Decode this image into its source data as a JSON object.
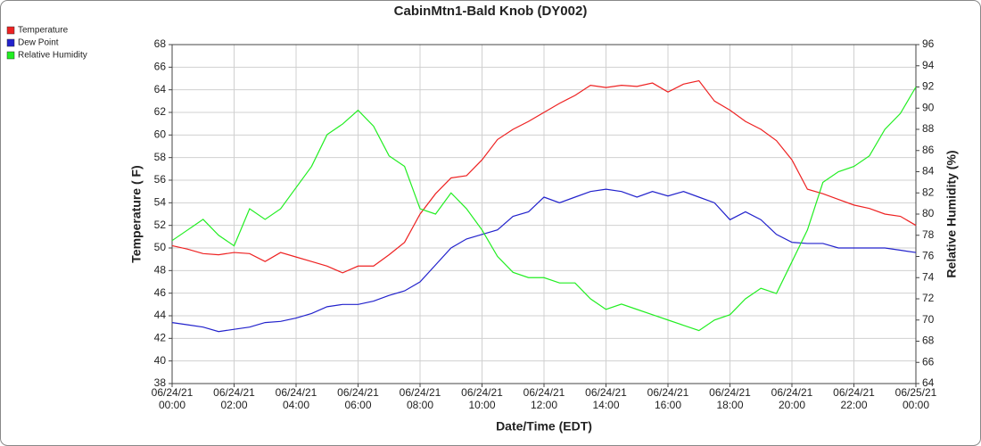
{
  "chart_data": {
    "type": "line",
    "title": "CabinMtn1-Bald Knob (DY002)",
    "xlabel": "Date/Time (EDT)",
    "ylabel": "Temperature ( F)",
    "y2label": "Relative Humidity (%)",
    "grid": true,
    "legend": "top-left",
    "x": [
      "2021-06-24T00:00",
      "2021-06-24T00:30",
      "2021-06-24T01:00",
      "2021-06-24T01:30",
      "2021-06-24T02:00",
      "2021-06-24T02:30",
      "2021-06-24T03:00",
      "2021-06-24T03:30",
      "2021-06-24T04:00",
      "2021-06-24T04:30",
      "2021-06-24T05:00",
      "2021-06-24T05:30",
      "2021-06-24T06:00",
      "2021-06-24T06:30",
      "2021-06-24T07:00",
      "2021-06-24T07:30",
      "2021-06-24T08:00",
      "2021-06-24T08:30",
      "2021-06-24T09:00",
      "2021-06-24T09:30",
      "2021-06-24T10:00",
      "2021-06-24T10:30",
      "2021-06-24T11:00",
      "2021-06-24T11:30",
      "2021-06-24T12:00",
      "2021-06-24T12:30",
      "2021-06-24T13:00",
      "2021-06-24T13:30",
      "2021-06-24T14:00",
      "2021-06-24T14:30",
      "2021-06-24T15:00",
      "2021-06-24T15:30",
      "2021-06-24T16:00",
      "2021-06-24T16:30",
      "2021-06-24T17:00",
      "2021-06-24T17:30",
      "2021-06-24T18:00",
      "2021-06-24T18:30",
      "2021-06-24T19:00",
      "2021-06-24T19:30",
      "2021-06-24T20:00",
      "2021-06-24T20:30",
      "2021-06-24T21:00",
      "2021-06-24T21:30",
      "2021-06-24T22:00",
      "2021-06-24T22:30",
      "2021-06-24T23:00",
      "2021-06-24T23:30",
      "2021-06-25T00:00"
    ],
    "xlim": [
      "2021-06-24T00:00",
      "2021-06-25T00:00"
    ],
    "xticks": [
      {
        "value": "2021-06-24T00:00",
        "label": "06/24/21 00:00"
      },
      {
        "value": "2021-06-24T02:00",
        "label": "06/24/21 02:00"
      },
      {
        "value": "2021-06-24T04:00",
        "label": "06/24/21 04:00"
      },
      {
        "value": "2021-06-24T06:00",
        "label": "06/24/21 06:00"
      },
      {
        "value": "2021-06-24T08:00",
        "label": "06/24/21 08:00"
      },
      {
        "value": "2021-06-24T10:00",
        "label": "06/24/21 10:00"
      },
      {
        "value": "2021-06-24T12:00",
        "label": "06/24/21 12:00"
      },
      {
        "value": "2021-06-24T14:00",
        "label": "06/24/21 14:00"
      },
      {
        "value": "2021-06-24T16:00",
        "label": "06/24/21 16:00"
      },
      {
        "value": "2021-06-24T18:00",
        "label": "06/24/21 18:00"
      },
      {
        "value": "2021-06-24T20:00",
        "label": "06/24/21 20:00"
      },
      {
        "value": "2021-06-24T22:00",
        "label": "06/24/21 22:00"
      },
      {
        "value": "2021-06-25T00:00",
        "label": "06/25/21 00:00"
      }
    ],
    "ylim": [
      38,
      68
    ],
    "yticks": [
      38,
      40,
      42,
      44,
      46,
      48,
      50,
      52,
      54,
      56,
      58,
      60,
      62,
      64,
      66,
      68
    ],
    "y2lim": [
      64,
      96
    ],
    "y2ticks": [
      64,
      66,
      68,
      70,
      72,
      74,
      76,
      78,
      80,
      82,
      84,
      86,
      88,
      90,
      92,
      94,
      96
    ],
    "series": [
      {
        "name": "Temperature",
        "color": "#ee2222",
        "values": [
          50.2,
          49.9,
          49.5,
          49.4,
          49.6,
          49.5,
          48.8,
          49.6,
          49.2,
          48.8,
          48.4,
          47.8,
          48.4,
          48.4,
          49.4,
          50.5,
          53.0,
          54.8,
          56.2,
          56.4,
          57.8,
          59.6,
          60.5,
          61.2,
          62.0,
          62.8,
          63.5,
          64.4,
          64.2,
          64.4,
          64.3,
          64.6,
          63.8,
          64.5,
          64.8,
          63.0,
          62.2,
          61.2,
          60.5,
          59.5,
          57.8,
          55.2,
          54.8,
          54.3,
          53.8,
          53.5,
          53.0,
          52.8,
          52.0
        ]
      },
      {
        "name": "Dew Point",
        "color": "#2222cc",
        "values": [
          43.4,
          43.2,
          43.0,
          42.6,
          42.8,
          43.0,
          43.4,
          43.5,
          43.8,
          44.2,
          44.8,
          45.0,
          45.0,
          45.3,
          45.8,
          46.2,
          47.0,
          48.5,
          50.0,
          50.8,
          51.2,
          51.6,
          52.8,
          53.2,
          54.5,
          54.0,
          54.5,
          55.0,
          55.2,
          55.0,
          54.5,
          55.0,
          54.6,
          55.0,
          54.5,
          54.0,
          52.5,
          53.2,
          52.5,
          51.2,
          50.5,
          50.4,
          50.4,
          50.0,
          50.0,
          50.0,
          50.0,
          49.8,
          49.6
        ]
      },
      {
        "name": "Relative Humidity",
        "color": "#22ee22",
        "axis": "y2",
        "values": [
          77.5,
          78.5,
          79.5,
          78,
          77,
          80.5,
          79.5,
          80.5,
          82.5,
          84.5,
          87.5,
          88.5,
          89.8,
          88.3,
          85.5,
          84.5,
          80.5,
          80,
          82,
          80.5,
          78.5,
          76,
          74.5,
          74,
          74,
          73.5,
          73.5,
          72,
          71,
          71.5,
          71,
          70.5,
          70,
          69.5,
          69,
          70,
          70.5,
          72,
          73,
          72.5,
          75.5,
          78.5,
          83,
          84,
          84.5,
          85.5,
          88,
          89.5,
          92
        ]
      }
    ]
  }
}
